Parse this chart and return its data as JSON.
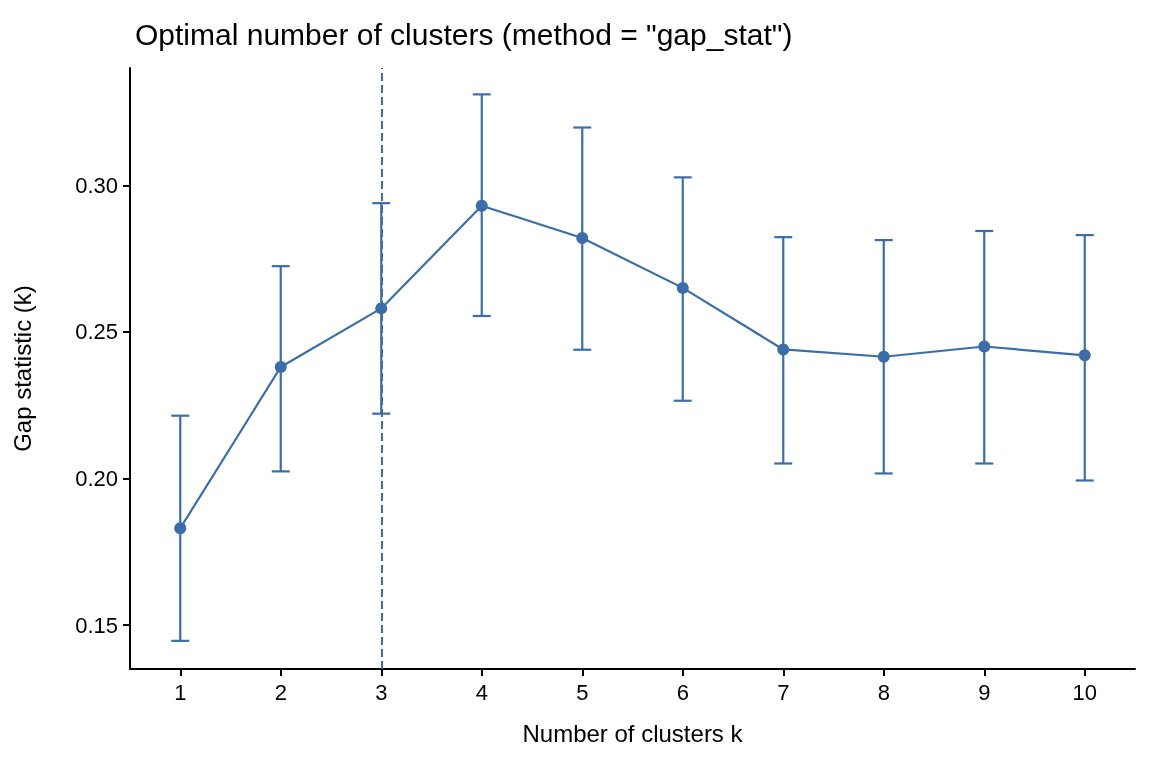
{
  "chart_data": {
    "type": "line",
    "title": "Optimal number of clusters (method = \"gap_stat\")",
    "xlabel": "Number of clusters k",
    "ylabel": "Gap statistic (k)",
    "categories": [
      "1",
      "2",
      "3",
      "4",
      "5",
      "6",
      "7",
      "8",
      "9",
      "10"
    ],
    "series": [
      {
        "color": "#3b6ea8",
        "values": [
          0.183,
          0.238,
          0.258,
          0.293,
          0.282,
          0.265,
          0.244,
          0.2415,
          0.245,
          0.242
        ],
        "errors": [
          [
            0.1446,
            0.2214
          ],
          [
            0.2024,
            0.2724
          ],
          [
            0.2221,
            0.2939
          ],
          [
            0.2554,
            0.331
          ],
          [
            0.2439,
            0.3197
          ],
          [
            0.2265,
            0.3027
          ],
          [
            0.2051,
            0.2823
          ],
          [
            0.2017,
            0.2813
          ],
          [
            0.2051,
            0.2844
          ],
          [
            0.1993,
            0.283
          ]
        ]
      }
    ],
    "ylim": [
      0.135,
      0.34
    ],
    "yticks": [
      0.15,
      {
        "value": 0.2,
        "label": "0.20"
      },
      0.25,
      {
        "value": 0.3,
        "label": "0.30"
      }
    ],
    "ref_lines": [
      {
        "axis": "x",
        "value": "3",
        "color": "#3b6ea8",
        "line_style": "dashed"
      }
    ],
    "marker": "circle",
    "line_style": "solid",
    "grid": false
  }
}
